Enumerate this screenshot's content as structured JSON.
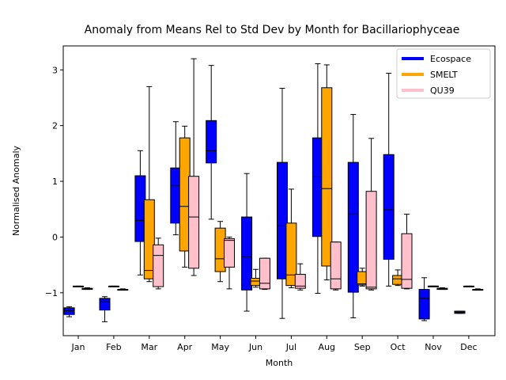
{
  "chart_data": {
    "type": "boxplot",
    "title": "Anomaly from Means Rel to Std Dev by Month for Bacillariophyceae",
    "xlabel": "Month",
    "ylabel": "Normalised Anomaly",
    "categories": [
      "Jan",
      "Feb",
      "Mar",
      "Apr",
      "May",
      "Jun",
      "Jul",
      "Aug",
      "Sep",
      "Oct",
      "Nov",
      "Dec"
    ],
    "ylim": [
      -1.77,
      3.43
    ],
    "yticks": [
      -1,
      0,
      1,
      2,
      3
    ],
    "legend_position": "top-right",
    "grid": false,
    "series": [
      {
        "name": "Ecospace",
        "color": "#0000ff",
        "boxes": [
          {
            "wlo": -1.43,
            "q1": -1.39,
            "med": -1.32,
            "q3": -1.27,
            "whi": -1.25
          },
          {
            "wlo": -1.52,
            "q1": -1.31,
            "med": -1.16,
            "q3": -1.1,
            "whi": -1.07
          },
          {
            "wlo": -0.68,
            "q1": -0.08,
            "med": 0.3,
            "q3": 1.1,
            "whi": 1.55
          },
          {
            "wlo": 0.04,
            "q1": 0.25,
            "med": 0.93,
            "q3": 1.24,
            "whi": 2.07
          },
          {
            "wlo": 0.32,
            "q1": 1.33,
            "med": 1.55,
            "q3": 2.09,
            "whi": 3.08
          },
          {
            "wlo": -1.33,
            "q1": -0.95,
            "med": -0.35,
            "q3": 0.36,
            "whi": 1.14
          },
          {
            "wlo": -1.46,
            "q1": -0.75,
            "med": 0.2,
            "q3": 1.34,
            "whi": 2.67
          },
          {
            "wlo": -1.01,
            "q1": 0.01,
            "med": 1.08,
            "q3": 1.78,
            "whi": 3.11
          },
          {
            "wlo": -1.45,
            "q1": -0.99,
            "med": 0.42,
            "q3": 1.34,
            "whi": 2.2
          },
          {
            "wlo": -0.88,
            "q1": -0.4,
            "med": 0.49,
            "q3": 1.48,
            "whi": 2.94
          },
          {
            "wlo": -1.5,
            "q1": -1.47,
            "med": -1.1,
            "q3": -0.94,
            "whi": -0.73
          },
          {
            "wlo": -1.37,
            "q1": -1.37,
            "med": -1.35,
            "q3": -1.33,
            "whi": -1.33
          }
        ]
      },
      {
        "name": "SMELT",
        "color": "#ffa500",
        "boxes": [
          {
            "wlo": -0.89,
            "q1": -0.89,
            "med": -0.89,
            "q3": -0.88,
            "whi": -0.88
          },
          {
            "wlo": -0.89,
            "q1": -0.89,
            "med": -0.89,
            "q3": -0.88,
            "whi": -0.88
          },
          {
            "wlo": -0.8,
            "q1": -0.75,
            "med": -0.6,
            "q3": 0.67,
            "whi": 2.7
          },
          {
            "wlo": -0.54,
            "q1": -0.25,
            "med": 0.55,
            "q3": 1.78,
            "whi": 1.99
          },
          {
            "wlo": -0.8,
            "q1": -0.62,
            "med": -0.39,
            "q3": 0.16,
            "whi": 0.28
          },
          {
            "wlo": -0.9,
            "q1": -0.87,
            "med": -0.79,
            "q3": -0.74,
            "whi": -0.58
          },
          {
            "wlo": -0.91,
            "q1": -0.87,
            "med": -0.68,
            "q3": 0.25,
            "whi": 0.86
          },
          {
            "wlo": -0.77,
            "q1": -0.52,
            "med": 0.87,
            "q3": 2.68,
            "whi": 3.09
          },
          {
            "wlo": -0.88,
            "q1": -0.86,
            "med": -0.84,
            "q3": -0.62,
            "whi": -0.56
          },
          {
            "wlo": -0.87,
            "q1": -0.85,
            "med": -0.75,
            "q3": -0.69,
            "whi": -0.59
          },
          {
            "wlo": -0.89,
            "q1": -0.89,
            "med": -0.88,
            "q3": -0.88,
            "whi": -0.88
          },
          {
            "wlo": -0.89,
            "q1": -0.89,
            "med": -0.89,
            "q3": -0.88,
            "whi": -0.88
          }
        ]
      },
      {
        "name": "QU39",
        "color": "#ffc0cb",
        "boxes": [
          {
            "wlo": -0.94,
            "q1": -0.94,
            "med": -0.93,
            "q3": -0.92,
            "whi": -0.91
          },
          {
            "wlo": -0.95,
            "q1": -0.95,
            "med": -0.94,
            "q3": -0.94,
            "whi": -0.93
          },
          {
            "wlo": -0.93,
            "q1": -0.89,
            "med": -0.33,
            "q3": -0.14,
            "whi": -0.02
          },
          {
            "wlo": -0.69,
            "q1": -0.56,
            "med": 0.36,
            "q3": 1.09,
            "whi": 3.2
          },
          {
            "wlo": -0.93,
            "q1": -0.54,
            "med": -0.06,
            "q3": -0.03,
            "whi": 0.0
          },
          {
            "wlo": -0.94,
            "q1": -0.93,
            "med": -0.83,
            "q3": -0.38,
            "whi": -0.38
          },
          {
            "wlo": -0.95,
            "q1": -0.92,
            "med": -0.88,
            "q3": -0.67,
            "whi": -0.48
          },
          {
            "wlo": -0.95,
            "q1": -0.93,
            "med": -0.75,
            "q3": -0.09,
            "whi": -0.09
          },
          {
            "wlo": -0.95,
            "q1": -0.93,
            "med": -0.9,
            "q3": 0.82,
            "whi": 1.77
          },
          {
            "wlo": -0.93,
            "q1": -0.92,
            "med": -0.76,
            "q3": 0.06,
            "whi": 0.41
          },
          {
            "wlo": -0.94,
            "q1": -0.94,
            "med": -0.93,
            "q3": -0.92,
            "whi": -0.91
          },
          {
            "wlo": -0.95,
            "q1": -0.95,
            "med": -0.94,
            "q3": -0.94,
            "whi": -0.93
          }
        ]
      }
    ]
  }
}
